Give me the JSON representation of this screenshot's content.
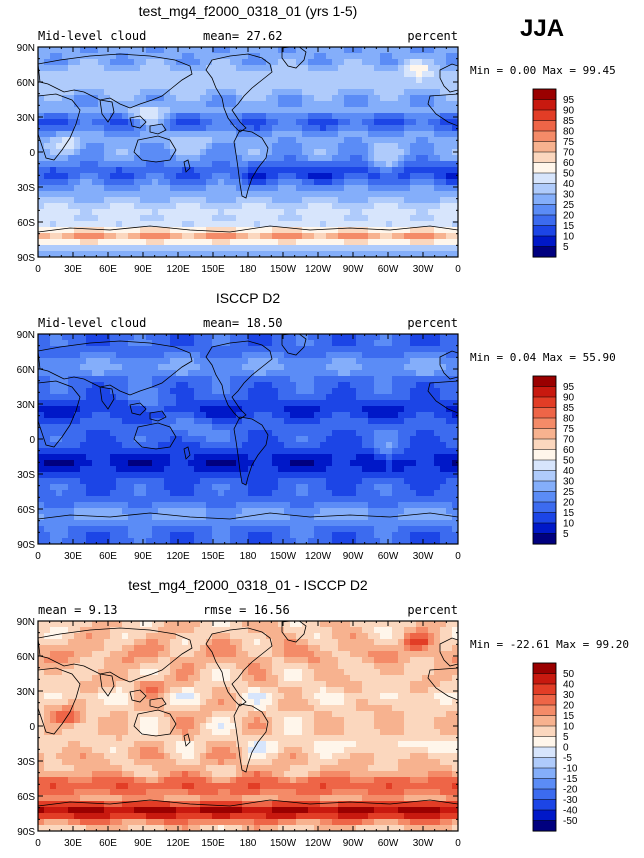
{
  "season": "JJA",
  "colors": {
    "seq": [
      "#00007f",
      "#0018c8",
      "#1c45e6",
      "#3c6bef",
      "#5b8cf6",
      "#84aefa",
      "#afcbfb",
      "#d7e5fc",
      "#fff6eb",
      "#fbd7be",
      "#f7b28f",
      "#f48b68",
      "#ee6547",
      "#e23d26",
      "#c8190f",
      "#9a0000"
    ],
    "div": [
      "#00007f",
      "#0018c8",
      "#1c45e6",
      "#3c6bef",
      "#5b8cf6",
      "#84aefa",
      "#afcbfb",
      "#d7e5fc",
      "#fff6eb",
      "#fbd7be",
      "#f7b28f",
      "#f48b68",
      "#ee6547",
      "#e23d26",
      "#c8190f",
      "#9a0000"
    ],
    "land": "#000000"
  },
  "panels": [
    {
      "title": "test_mg4_f2000_0318_01 (yrs 1-5)",
      "left_label": "Mid-level cloud",
      "center_label": "mean=  27.62",
      "right_label": "percent",
      "min_max": "Min =   0.00 Max =  99.45",
      "colorbar_labels": [
        "95",
        "90",
        "85",
        "80",
        "75",
        "70",
        "60",
        "50",
        "40",
        "30",
        "25",
        "20",
        "15",
        "10",
        "5"
      ],
      "scale": "seq",
      "field": "model"
    },
    {
      "title": "ISCCP D2",
      "left_label": "Mid-level cloud",
      "center_label": "mean=  18.50",
      "right_label": "percent",
      "min_max": "Min =   0.04 Max =  55.90",
      "colorbar_labels": [
        "95",
        "90",
        "85",
        "80",
        "75",
        "70",
        "60",
        "50",
        "40",
        "30",
        "25",
        "20",
        "15",
        "10",
        "5"
      ],
      "scale": "seq",
      "field": "obs"
    },
    {
      "title": "test_mg4_f2000_0318_01 - ISCCP D2",
      "left_label": "mean =   9.13",
      "center_label": "rmse =  16.56",
      "right_label": "percent",
      "min_max": "Min = -22.61 Max =  99.20",
      "colorbar_labels": [
        "50",
        "40",
        "30",
        "20",
        "15",
        "10",
        "5",
        "0",
        "-5",
        "-10",
        "-15",
        "-20",
        "-30",
        "-40",
        "-50"
      ],
      "scale": "div",
      "field": "diff"
    }
  ],
  "axes": {
    "lat_labels": [
      "90N",
      "60N",
      "30N",
      "0",
      "30S",
      "60S",
      "90S"
    ],
    "lon_labels": [
      "0",
      "30E",
      "60E",
      "90E",
      "120E",
      "150E",
      "180",
      "150W",
      "120W",
      "90W",
      "60W",
      "30W",
      "0"
    ]
  }
}
